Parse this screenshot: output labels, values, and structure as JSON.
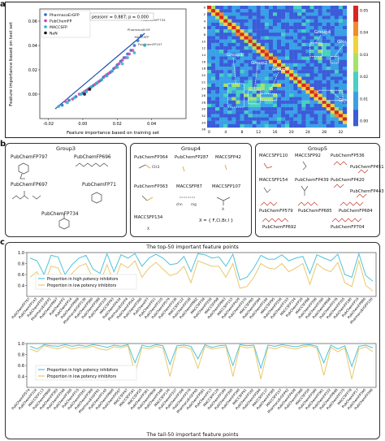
{
  "panel_labels": {
    "a": "a",
    "b": "b",
    "c": "c"
  },
  "chart_data": [
    {
      "type": "scatter",
      "xlabel": "Feature importance based on training set",
      "ylabel": "Feature importance based on test set",
      "xlim": [
        -0.025,
        0.06
      ],
      "ylim": [
        -0.02,
        0.07
      ],
      "xticks": [
        "-0.02",
        "0.00",
        "0.02",
        "0.04"
      ],
      "yticks": [
        "0.00",
        "0.02",
        "0.04",
        "0.06"
      ],
      "annotation": "peasonr = 0.887; p = 0.000",
      "legend_position": "top-left",
      "series": [
        {
          "name": "PharmacoErGFP",
          "color": "#2a6cc9",
          "x": [
            -0.012,
            -0.008,
            -0.004,
            0.0,
            0.002,
            0.004,
            0.006,
            0.008,
            0.01,
            0.012,
            0.014,
            0.016,
            0.018,
            0.02,
            0.022,
            0.024,
            0.026,
            0.028,
            0.03,
            0.032,
            0.034
          ],
          "y": [
            -0.009,
            -0.005,
            -0.002,
            0.001,
            0.003,
            0.005,
            0.007,
            0.009,
            0.011,
            0.014,
            0.016,
            0.018,
            0.021,
            0.024,
            0.027,
            0.03,
            0.033,
            0.036,
            0.04,
            0.044,
            0.048
          ]
        },
        {
          "name": "PubChemFP",
          "color": "#d43bb0",
          "x": [
            -0.01,
            -0.006,
            -0.002,
            0.001,
            0.003,
            0.005,
            0.007,
            0.009,
            0.011,
            0.013,
            0.015,
            0.017,
            0.019,
            0.021,
            0.023,
            0.025,
            0.027,
            0.029
          ],
          "y": [
            -0.006,
            -0.004,
            0.0,
            0.002,
            0.004,
            0.006,
            0.008,
            0.01,
            0.012,
            0.015,
            0.017,
            0.019,
            0.022,
            0.025,
            0.028,
            0.03,
            0.033,
            0.036
          ]
        },
        {
          "name": "MACCSFP",
          "color": "#27b7c9",
          "x": [
            -0.014,
            -0.009,
            -0.005,
            -0.001,
            0.002,
            0.005,
            0.008,
            0.011,
            0.014,
            0.017,
            0.02,
            0.023,
            0.026,
            0.03,
            0.036
          ],
          "y": [
            -0.01,
            -0.007,
            -0.003,
            0.0,
            0.002,
            0.006,
            0.009,
            0.012,
            0.015,
            0.019,
            0.022,
            0.025,
            0.03,
            0.034,
            0.04
          ]
        },
        {
          "name": "NaN",
          "color": "#111111",
          "x": [
            0.001,
            0.004
          ],
          "y": [
            0.0,
            0.004
          ]
        }
      ],
      "point_labels": [
        "PubChemFF734",
        "PharmacoErGF",
        "PubChemFP107",
        "MACCSFP"
      ]
    },
    {
      "type": "heatmap",
      "xticks": [
        "0",
        "4",
        "8",
        "12",
        "16",
        "20",
        "24",
        "28",
        "32"
      ],
      "yticks": [
        "0",
        "2",
        "4",
        "6",
        "8",
        "10",
        "12",
        "14",
        "16",
        "18",
        "20",
        "22",
        "24",
        "26",
        "28",
        "30",
        "32",
        "34",
        "36"
      ],
      "colorbar_ticks": [
        "0.05",
        "0.04",
        "0.03",
        "0.02",
        "0.01",
        "0.00"
      ],
      "annotations": [
        "Group1",
        "Group2",
        "Group3",
        "Group4",
        "Group5",
        "Group6"
      ]
    },
    {
      "type": "line",
      "title": "The top-50 important feature points",
      "ylim": [
        0.2,
        1.0
      ],
      "yticks": [
        "0.4",
        "0.6",
        "0.8",
        "1.0"
      ],
      "categories": [
        "PubChemFP797",
        "PubChemFP143",
        "PubChemFP29",
        "PharmacoErGFP2",
        "PubChemFP697",
        "PubChemFP2",
        "PubChemFP14",
        "PubChemFP698",
        "PharmacoErGFP136",
        "PubChemFP580",
        "PubChemFP388",
        "PubChemFP335",
        "MACCSFP93",
        "PubChemFP434",
        "PharmacoErGFP4",
        "PubChemFP542",
        "PubChemFP390",
        "PubChemFP7",
        "PubChemFP21",
        "PubChemFP335",
        "PubChemFP579",
        "PubChemFP336",
        "MACCSFP122",
        "PubChemFP338",
        "PubChemFP682",
        "MACCSFP38",
        "PubChemFP256",
        "MACCSFP98",
        "PubChemFP693",
        "MACCSFP153",
        "PubChemFP439",
        "PubChemFP375",
        "MACCSFP65",
        "PubChemFP384",
        "PubChemFP184",
        "MACCSFP95",
        "PubChemFP256",
        "PubChemFP193",
        "MACCSFP154",
        "PubChemFP28",
        "MACCSFP66",
        "PubChemFP356",
        "PubChemFP390",
        "PubChemFP698",
        "PubChemFP376",
        "PubChemFP355",
        "PubChemFP180",
        "PubChemFP19",
        "PubChemFP680",
        "PharmacoErGFP150"
      ],
      "series": [
        {
          "name": "Proportion in high potency inhibitors",
          "color": "#4fc3d9",
          "values": [
            0.9,
            0.85,
            0.6,
            0.95,
            0.92,
            0.6,
            0.78,
            0.9,
            0.95,
            0.7,
            0.62,
            0.98,
            0.65,
            0.96,
            0.9,
            0.98,
            0.75,
            0.9,
            0.97,
            0.9,
            0.78,
            0.8,
            0.93,
            0.65,
            0.98,
            0.96,
            0.9,
            0.92,
            0.75,
            0.97,
            0.5,
            0.55,
            0.72,
            0.95,
            0.88,
            0.88,
            0.96,
            0.85,
            0.9,
            0.93,
            0.62,
            0.96,
            0.9,
            0.85,
            0.97,
            0.6,
            0.55,
            0.98,
            0.58,
            0.48
          ]
        },
        {
          "name": "Proportion in low potency inhibitors",
          "color": "#e7c96a",
          "values": [
            0.55,
            0.65,
            0.42,
            0.75,
            0.72,
            0.45,
            0.62,
            0.75,
            0.8,
            0.52,
            0.45,
            0.78,
            0.45,
            0.8,
            0.72,
            0.85,
            0.55,
            0.72,
            0.82,
            0.7,
            0.58,
            0.62,
            0.75,
            0.45,
            0.85,
            0.8,
            0.75,
            0.75,
            0.55,
            0.8,
            0.35,
            0.38,
            0.55,
            0.8,
            0.72,
            0.7,
            0.8,
            0.65,
            0.72,
            0.8,
            0.42,
            0.8,
            0.7,
            0.65,
            0.82,
            0.45,
            0.38,
            0.85,
            0.4,
            0.3
          ]
        }
      ]
    },
    {
      "type": "line",
      "title": "The tail-50 important feature points",
      "ylim": [
        0.2,
        1.0
      ],
      "yticks": [
        "0.4",
        "0.6",
        "0.8",
        "1.0"
      ],
      "categories": [
        "PubChemFP574",
        "PubChemFP334",
        "MACCSFP113",
        "PubChemFP600",
        "PubChemFP383",
        "PubChemFP346",
        "PubChemFP385",
        "PubChemFP15",
        "PubChemFP261",
        "PubChemFP369",
        "PharmacoErGFP91",
        "PubChemFP145",
        "PubChemFP600",
        "PubChemFP597",
        "MACCSFP47",
        "MACCSFP161",
        "MACCSFP25",
        "PubChemFP381",
        "PubChemFP656",
        "PubChemFP346",
        "MACCSFP134",
        "PubChemFP337",
        "PubChemFP356",
        "PubChemFP379",
        "PharmacoErGFP45",
        "PubChemFP581",
        "PubChemFP13",
        "MACCSFP129",
        "PubChemFP189",
        "PubChemFP395",
        "PubChemFP340",
        "MACCSFP91",
        "PubChemFP182",
        "PubChemFP264",
        "MACCSFP137",
        "PubChemFP385",
        "MACCSFP157",
        "PharmacoErGFP42",
        "PubChemFP436",
        "PubChemFP368",
        "MACCSFP20",
        "PubChemFP389",
        "PubChemFP361",
        "PubChemFP332",
        "PubChemFP698",
        "PubChemFP375",
        "MACCSFP78",
        "PubChemFP17",
        "PubChemFP340",
        "PubChemFP346"
      ],
      "series": [
        {
          "name": "Proportion in high potency inhibitors",
          "color": "#4fc3d9",
          "values": [
            0.95,
            0.9,
            0.98,
            0.96,
            0.95,
            0.98,
            0.95,
            0.97,
            0.95,
            0.98,
            0.96,
            0.93,
            0.97,
            0.95,
            0.98,
            0.65,
            0.97,
            0.94,
            0.98,
            0.96,
            0.62,
            0.96,
            0.97,
            0.95,
            0.72,
            0.98,
            0.93,
            0.96,
            0.97,
            0.6,
            0.98,
            0.96,
            0.97,
            0.55,
            0.97,
            0.95,
            0.98,
            0.96,
            0.94,
            0.97,
            0.98,
            0.95,
            0.65,
            0.97,
            0.9,
            0.96,
            0.58,
            0.95,
            0.97,
            0.92
          ]
        },
        {
          "name": "Proportion in low potency inhibitors",
          "color": "#e7c96a",
          "values": [
            0.9,
            0.85,
            0.96,
            0.93,
            0.9,
            0.95,
            0.9,
            0.93,
            0.92,
            0.95,
            0.9,
            0.88,
            0.94,
            0.92,
            0.96,
            0.45,
            0.93,
            0.9,
            0.95,
            0.92,
            0.4,
            0.92,
            0.94,
            0.9,
            0.55,
            0.95,
            0.9,
            0.92,
            0.94,
            0.4,
            0.95,
            0.92,
            0.94,
            0.35,
            0.93,
            0.9,
            0.95,
            0.92,
            0.9,
            0.94,
            0.96,
            0.92,
            0.42,
            0.93,
            0.85,
            0.92,
            0.35,
            0.9,
            0.94,
            0.85
          ]
        }
      ]
    }
  ],
  "groups": {
    "group3": {
      "title": "Group3",
      "labels": [
        "PubChemFP797",
        "PubChemFP696",
        "PubChemFP697",
        "PubChemFP71",
        "PubChemFP734"
      ]
    },
    "group4": {
      "title": "Group4",
      "labels": [
        "PubChemFP364",
        "PubChemFP287",
        "MACCSFP42",
        "PubChemFP363",
        "MACCSFP87",
        "MACCSFP107",
        "MACCSFP134"
      ],
      "atom_labels": {
        "ch3": "CH3",
        "chn": "chn",
        "mg": "mg",
        "a": "A",
        "x": "X"
      },
      "formula": "X = { F,Cl,Br,I }"
    },
    "group5": {
      "title": "Group5",
      "labels": [
        "MACCSFP110",
        "MACCSFP92",
        "PubChemFP536",
        "PubChemFP451",
        "MACCSFP154",
        "PubChemFP439",
        "PubChemFP420",
        "PubChemFP443",
        "PubChemFP579",
        "PubChemFP685",
        "PubChemFP684",
        "PubChemFP692",
        "PubChemFP704"
      ]
    }
  }
}
